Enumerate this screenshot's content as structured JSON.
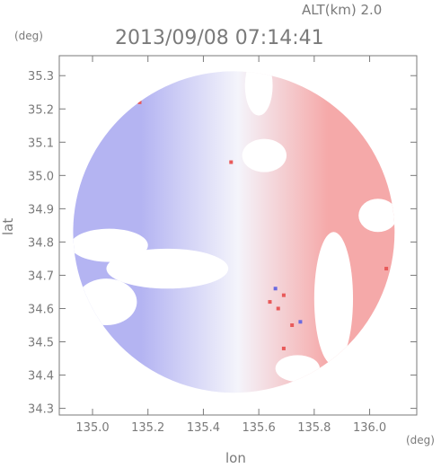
{
  "chart_data": {
    "type": "heatmap",
    "title": "2013/09/08 07:14:41",
    "subtitle": "ALT(km) 2.0",
    "xlabel": "lon",
    "ylabel": "lat",
    "x_unit": "(deg)",
    "y_unit": "(deg)",
    "xlim": [
      134.88,
      136.17
    ],
    "ylim": [
      34.28,
      35.36
    ],
    "x_ticks": [
      135.0,
      135.2,
      135.4,
      135.6,
      135.8,
      136.0
    ],
    "y_ticks": [
      34.3,
      34.4,
      34.5,
      34.6,
      34.7,
      34.8,
      34.9,
      35.0,
      35.1,
      35.2,
      35.3
    ],
    "x_tick_labels": [
      "135.0",
      "135.2",
      "135.4",
      "135.6",
      "135.8",
      "136.0"
    ],
    "y_tick_labels": [
      "34.3",
      "34.4",
      "34.5",
      "34.6",
      "34.7",
      "34.8",
      "34.9",
      "35.0",
      "35.1",
      "35.2",
      "35.3"
    ],
    "grid": false,
    "colormap": {
      "negative": "#b4b4f2",
      "zero": "#f4f4fb",
      "positive": "#f5a9a9"
    },
    "field": {
      "center": [
        135.51,
        34.83
      ],
      "radius": 0.58,
      "regions": [
        {
          "name": "west",
          "lon_range": [
            134.9,
            135.45
          ],
          "value": -0.6
        },
        {
          "name": "center",
          "lon_range": [
            135.45,
            135.6
          ],
          "value": 0.0
        },
        {
          "name": "east",
          "lon_range": [
            135.6,
            136.1
          ],
          "value": 0.55
        }
      ],
      "speckles": [
        {
          "lon": 135.64,
          "lat": 34.62,
          "value": 0.9
        },
        {
          "lon": 135.67,
          "lat": 34.6,
          "value": 0.85
        },
        {
          "lon": 135.69,
          "lat": 34.64,
          "value": 0.9
        },
        {
          "lon": 135.66,
          "lat": 34.66,
          "value": -0.8
        },
        {
          "lon": 135.72,
          "lat": 34.55,
          "value": 0.8
        },
        {
          "lon": 135.75,
          "lat": 34.56,
          "value": -0.8
        },
        {
          "lon": 135.69,
          "lat": 34.48,
          "value": 0.9
        },
        {
          "lon": 135.17,
          "lat": 35.22,
          "value": 0.95
        },
        {
          "lon": 135.5,
          "lat": 35.04,
          "value": 0.95
        },
        {
          "lon": 136.06,
          "lat": 34.72,
          "value": 0.85
        }
      ],
      "gaps": [
        {
          "lon": 135.6,
          "lat": 35.27,
          "rx": 0.05,
          "ry": 0.09
        },
        {
          "lon": 135.62,
          "lat": 35.06,
          "rx": 0.08,
          "ry": 0.05
        },
        {
          "lon": 135.06,
          "lat": 34.79,
          "rx": 0.14,
          "ry": 0.05
        },
        {
          "lon": 135.27,
          "lat": 34.72,
          "rx": 0.22,
          "ry": 0.06
        },
        {
          "lon": 135.87,
          "lat": 34.63,
          "rx": 0.07,
          "ry": 0.2
        },
        {
          "lon": 136.03,
          "lat": 34.88,
          "rx": 0.07,
          "ry": 0.05
        },
        {
          "lon": 135.05,
          "lat": 34.62,
          "rx": 0.11,
          "ry": 0.07
        },
        {
          "lon": 135.74,
          "lat": 34.42,
          "rx": 0.08,
          "ry": 0.04
        }
      ]
    }
  }
}
